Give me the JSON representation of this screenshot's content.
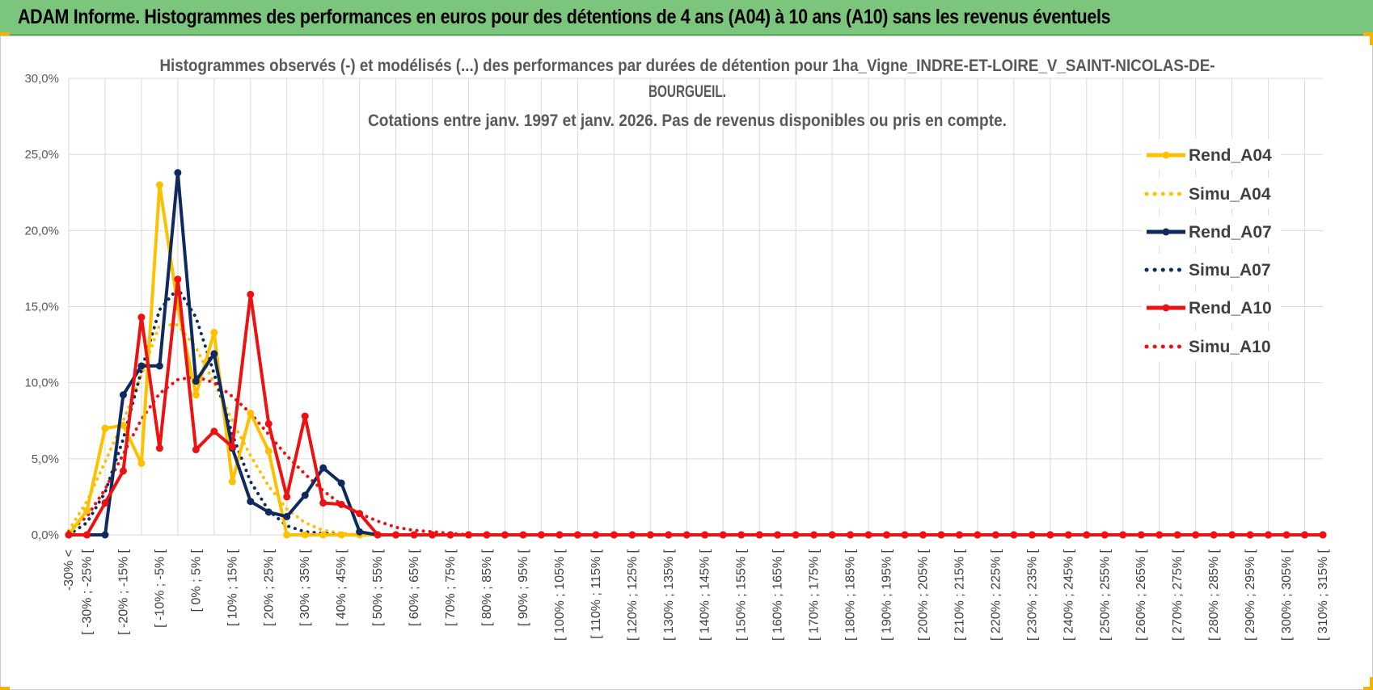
{
  "header": {
    "title": "ADAM Informe. Histogrammes des performances en euros pour des détentions de 4 ans (A04) à 10 ans (A10) sans les revenus éventuels"
  },
  "colors": {
    "banner": "#7cc57c",
    "A04": "#ffc000",
    "A07": "#0e2a5e",
    "A10": "#ee1111",
    "grid": "#d9d9d9"
  },
  "chart_data": {
    "type": "line",
    "title_lines": [
      "Histogrammes observés (-) et modélisés (...) des performances par durées de détention pour 1ha_Vigne_INDRE-ET-LOIRE_V_SAINT-NICOLAS-DE-",
      "BOURGUEIL.",
      "Cotations entre janv. 1997 et janv. 2026. Pas de revenus disponibles ou pris en compte."
    ],
    "ylim": [
      0,
      30
    ],
    "yticks": [
      "0,0%",
      "5,0%",
      "10,0%",
      "15,0%",
      "20,0%",
      "25,0%",
      "30,0%"
    ],
    "grid": true,
    "legend_position": "right",
    "categories": [
      "-30% <",
      "[ -30% ; -25% [",
      "[ -25% ; -20% [",
      "[ -20% ; -15% [",
      "[ -15% ; -10% [",
      "[ -10% ; -5% [",
      "[ -5% ; 0% [",
      "[ 0% ; 5% [",
      "[ 5% ; 10% [",
      "[ 10% ; 15% [",
      "[ 15% ; 20% [",
      "[ 20% ; 25% [",
      "[ 25% ; 30% [",
      "[ 30% ; 35% [",
      "[ 35% ; 40% [",
      "[ 40% ; 45% [",
      "[ 45% ; 50% [",
      "[ 50% ; 55% [",
      "[ 55% ; 60% [",
      "[ 60% ; 65% [",
      "[ 65% ; 70% [",
      "[ 70% ; 75% [",
      "[ 75% ; 80% [",
      "[ 80% ; 85% [",
      "[ 85% ; 90% [",
      "[ 90% ; 95% [",
      "[ 95% ; 100% [",
      "[ 100% ; 105% [",
      "[ 105% ; 110% [",
      "[ 110% ; 115% [",
      "[ 115% ; 120% [",
      "[ 120% ; 125% [",
      "[ 125% ; 130% [",
      "[ 130% ; 135% [",
      "[ 135% ; 140% [",
      "[ 140% ; 145% [",
      "[ 145% ; 150% [",
      "[ 150% ; 155% [",
      "[ 155% ; 160% [",
      "[ 160% ; 165% [",
      "[ 165% ; 170% [",
      "[ 170% ; 175% [",
      "[ 175% ; 180% [",
      "[ 180% ; 185% [",
      "[ 185% ; 190% [",
      "[ 190% ; 195% [",
      "[ 195% ; 200% [",
      "[ 200% ; 205% [",
      "[ 205% ; 210% [",
      "[ 210% ; 215% [",
      "[ 215% ; 220% [",
      "[ 220% ; 225% [",
      "[ 225% ; 230% [",
      "[ 230% ; 235% [",
      "[ 235% ; 240% [",
      "[ 240% ; 245% [",
      "[ 245% ; 250% [",
      "[ 250% ; 255% [",
      "[ 255% ; 260% [",
      "[ 260% ; 265% [",
      "[ 265% ; 270% [",
      "[ 270% ; 275% [",
      "[ 275% ; 280% [",
      "[ 280% ; 285% [",
      "[ 285% ; 290% [",
      "[ 290% ; 295% [",
      "[ 295% ; 300% [",
      "[ 300% ; 305% [",
      "[ 305% ; 310% [",
      "[ 310% ; 315% ["
    ],
    "series": [
      {
        "name": "Rend_A04",
        "style": "solid",
        "color": "#ffc000",
        "values": [
          0,
          1.6,
          7.0,
          7.2,
          4.7,
          23.0,
          15.0,
          9.2,
          13.3,
          3.5,
          8.0,
          5.5,
          0,
          0,
          0,
          0,
          0,
          0,
          0,
          0,
          0,
          0,
          0,
          0,
          0,
          0,
          0,
          0,
          0,
          0,
          0,
          0,
          0,
          0,
          0,
          0,
          0,
          0,
          0,
          0,
          0,
          0,
          0,
          0,
          0,
          0,
          0,
          0,
          0,
          0,
          0,
          0,
          0,
          0,
          0,
          0,
          0,
          0,
          0,
          0,
          0,
          0,
          0,
          0,
          0,
          0,
          0,
          0,
          0,
          0
        ]
      },
      {
        "name": "Simu_A04",
        "style": "dotted",
        "color": "#ffc000",
        "values": [
          0.3,
          2.2,
          4.8,
          7.5,
          10.5,
          13.8,
          13.8,
          12.3,
          10.0,
          7.5,
          5.2,
          3.2,
          1.7,
          0.8,
          0.3,
          0.1,
          0,
          0,
          0,
          0,
          0,
          0,
          0,
          0,
          0,
          0,
          0,
          0,
          0,
          0,
          0,
          0,
          0,
          0,
          0,
          0,
          0,
          0,
          0,
          0,
          0,
          0,
          0,
          0,
          0,
          0,
          0,
          0,
          0,
          0,
          0,
          0,
          0,
          0,
          0,
          0,
          0,
          0,
          0,
          0,
          0,
          0,
          0,
          0,
          0,
          0,
          0,
          0,
          0,
          0
        ]
      },
      {
        "name": "Rend_A07",
        "style": "solid",
        "color": "#0e2a5e",
        "values": [
          0,
          0,
          0,
          9.2,
          11.1,
          11.1,
          23.8,
          10.1,
          11.9,
          5.7,
          2.2,
          1.5,
          1.2,
          2.6,
          4.4,
          3.4,
          0.2,
          0,
          0,
          0,
          0,
          0,
          0,
          0,
          0,
          0,
          0,
          0,
          0,
          0,
          0,
          0,
          0,
          0,
          0,
          0,
          0,
          0,
          0,
          0,
          0,
          0,
          0,
          0,
          0,
          0,
          0,
          0,
          0,
          0,
          0,
          0,
          0,
          0,
          0,
          0,
          0,
          0,
          0,
          0,
          0,
          0,
          0,
          0,
          0,
          0,
          0,
          0,
          0,
          0
        ]
      },
      {
        "name": "Simu_A07",
        "style": "dotted",
        "color": "#0e2a5e",
        "values": [
          0,
          0.8,
          2.8,
          6.3,
          10.8,
          14.8,
          16.2,
          14.3,
          10.6,
          6.6,
          3.5,
          1.6,
          0.6,
          0.2,
          0.1,
          0,
          0,
          0,
          0,
          0,
          0,
          0,
          0,
          0,
          0,
          0,
          0,
          0,
          0,
          0,
          0,
          0,
          0,
          0,
          0,
          0,
          0,
          0,
          0,
          0,
          0,
          0,
          0,
          0,
          0,
          0,
          0,
          0,
          0,
          0,
          0,
          0,
          0,
          0,
          0,
          0,
          0,
          0,
          0,
          0,
          0,
          0,
          0,
          0,
          0,
          0,
          0,
          0,
          0,
          0
        ]
      },
      {
        "name": "Rend_A10",
        "style": "solid",
        "color": "#ee1111",
        "values": [
          0,
          0,
          2.1,
          4.2,
          14.3,
          5.7,
          16.8,
          5.6,
          6.8,
          5.8,
          15.8,
          7.3,
          2.5,
          7.8,
          2.1,
          2.0,
          1.4,
          0,
          0,
          0,
          0,
          0,
          0,
          0,
          0,
          0,
          0,
          0,
          0,
          0,
          0,
          0,
          0,
          0,
          0,
          0,
          0,
          0,
          0,
          0,
          0,
          0,
          0,
          0,
          0,
          0,
          0,
          0,
          0,
          0,
          0,
          0,
          0,
          0,
          0,
          0,
          0,
          0,
          0,
          0,
          0,
          0,
          0,
          0,
          0,
          0,
          0,
          0,
          0,
          0
        ]
      },
      {
        "name": "Simu_A10",
        "style": "dotted",
        "color": "#ee1111",
        "values": [
          0.2,
          1.2,
          3.0,
          5.3,
          7.6,
          9.3,
          10.2,
          10.4,
          10.0,
          9.1,
          8.0,
          6.6,
          5.2,
          4.0,
          2.9,
          2.0,
          1.4,
          0.9,
          0.5,
          0.3,
          0.2,
          0.1,
          0,
          0,
          0,
          0,
          0,
          0,
          0,
          0,
          0,
          0,
          0,
          0,
          0,
          0,
          0,
          0,
          0,
          0,
          0,
          0,
          0,
          0,
          0,
          0,
          0,
          0,
          0,
          0,
          0,
          0,
          0,
          0,
          0,
          0,
          0,
          0,
          0,
          0,
          0,
          0,
          0,
          0,
          0,
          0,
          0,
          0,
          0,
          0
        ]
      }
    ]
  }
}
